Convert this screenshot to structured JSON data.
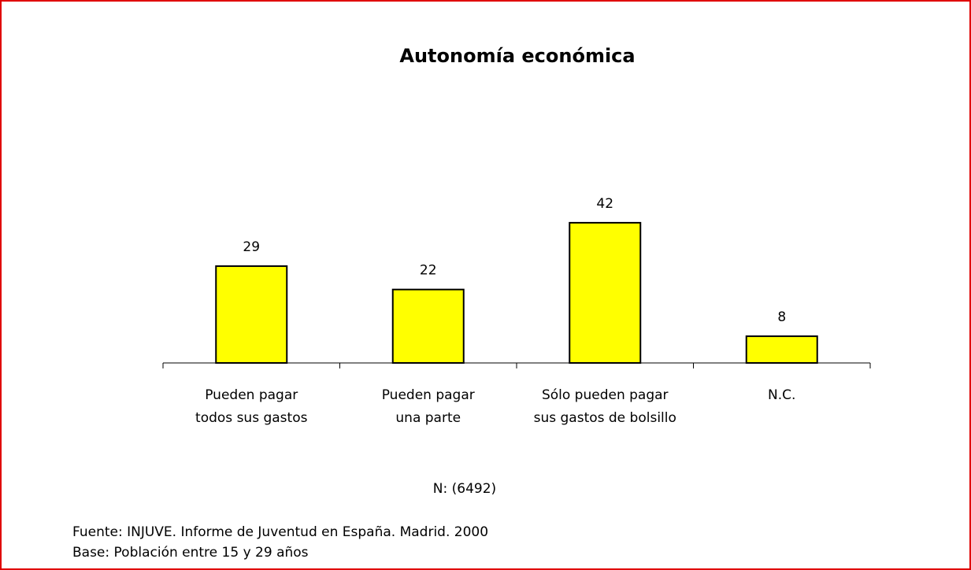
{
  "chart_data": {
    "type": "bar",
    "title": "Autonomía económica",
    "categories": [
      [
        "Pueden pagar",
        "todos sus gastos"
      ],
      [
        "Pueden pagar",
        "una parte"
      ],
      [
        "Sólo pueden pagar",
        "sus gastos de bolsillo"
      ],
      [
        "N.C."
      ]
    ],
    "values": [
      29,
      22,
      42,
      8
    ],
    "color": "#ffff00",
    "annotation": "N: (6492)",
    "source": "Fuente: INJUVE. Informe de Juventud en España. Madrid. 2000",
    "base": "Base: Población entre 15 y 29 años"
  }
}
